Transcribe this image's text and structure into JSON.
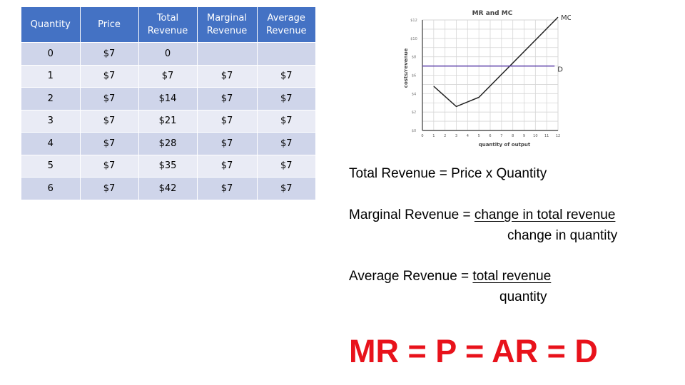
{
  "table": {
    "headers": [
      "Quantity",
      "Price",
      "Total\nRevenue",
      "Marginal\nRevenue",
      "Average\nRevenue"
    ],
    "rows": [
      [
        "0",
        "$7",
        "0",
        "",
        ""
      ],
      [
        "1",
        "$7",
        "$7",
        "$7",
        "$7"
      ],
      [
        "2",
        "$7",
        "$14",
        "$7",
        "$7"
      ],
      [
        "3",
        "$7",
        "$21",
        "$7",
        "$7"
      ],
      [
        "4",
        "$7",
        "$28",
        "$7",
        "$7"
      ],
      [
        "5",
        "$7",
        "$35",
        "$7",
        "$7"
      ],
      [
        "6",
        "$7",
        "$42",
        "$7",
        "$7"
      ]
    ]
  },
  "chart_data": {
    "type": "line",
    "title": "MR and MC",
    "xlabel": "quantity of output",
    "ylabel": "costs/revenue",
    "x_ticks": [
      "0",
      "1",
      "2",
      "3",
      "4",
      "5",
      "6",
      "7",
      "8",
      "9",
      "10",
      "11",
      "12"
    ],
    "y_ticks": [
      "$0",
      "$2",
      "$4",
      "$6",
      "$8",
      "$10",
      "$12"
    ],
    "xlim": [
      0,
      12
    ],
    "ylim": [
      0,
      12
    ],
    "grid": true,
    "series": [
      {
        "name": "MC",
        "color": "#222222",
        "x": [
          1,
          3,
          5,
          12
        ],
        "y": [
          4.8,
          2.6,
          3.6,
          12.3
        ]
      },
      {
        "name": "D",
        "color": "#5b3fa8",
        "x": [
          0,
          11.7
        ],
        "y": [
          7,
          7
        ]
      }
    ]
  },
  "formulas": {
    "total": "Total Revenue = Price x Quantity",
    "marginal_lhs": "Marginal Revenue = ",
    "marginal_num": "change in total revenue",
    "marginal_den": "change in quantity",
    "average_lhs": "Average Revenue = ",
    "average_num": "total revenue",
    "average_den": "quantity",
    "big": "MR =  P = AR = D"
  },
  "colors": {
    "header_bg": "#4472c4",
    "row_odd": "#cfd5ea",
    "row_even": "#e9ebf5",
    "big_text": "#e8121b"
  }
}
